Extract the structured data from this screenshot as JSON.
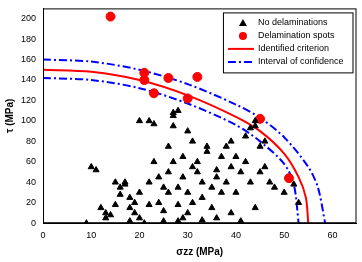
{
  "chart_data": {
    "type": "scatter",
    "x_label": "σzz (MPa)",
    "y_label": "τ (MPa)",
    "xlim": [
      0,
      65
    ],
    "ylim": [
      0,
      210
    ],
    "xticks": [
      0,
      10,
      20,
      30,
      40,
      50,
      60
    ],
    "yticks": [
      0,
      20,
      40,
      60,
      80,
      100,
      120,
      140,
      160,
      180,
      200
    ],
    "grid": false,
    "legend": "upper right",
    "series": [
      {
        "name": "No delaminations",
        "color": "#000000",
        "marker": "triangle",
        "x": [
          9,
          10,
          11,
          12,
          13,
          13,
          14,
          15,
          15,
          16,
          16,
          17,
          17,
          18,
          18,
          19,
          19,
          20,
          20,
          21,
          22,
          22,
          23,
          23,
          24,
          24,
          25,
          25,
          26,
          26,
          27,
          27,
          27,
          27,
          28,
          28,
          28,
          29,
          29,
          30,
          30,
          31,
          31,
          31,
          32,
          32,
          33,
          33,
          34,
          34,
          35,
          35,
          36,
          36,
          37,
          37,
          38,
          38,
          39,
          39,
          40,
          40,
          41,
          42,
          42,
          43,
          43,
          44,
          44,
          45,
          45,
          46,
          46,
          47,
          48,
          50,
          53,
          52,
          20,
          22,
          29,
          30,
          26,
          18,
          25,
          28,
          33,
          41,
          36,
          39,
          44
        ],
        "values": [
          0,
          55,
          52,
          15,
          10,
          5,
          8,
          18,
          40,
          35,
          28,
          40,
          38,
          25,
          15,
          20,
          10,
          5,
          30,
          0,
          18,
          40,
          97,
          60,
          45,
          20,
          12,
          35,
          75,
          50,
          108,
          105,
          95,
          60,
          35,
          18,
          110,
          45,
          65,
          30,
          10,
          55,
          80,
          20,
          60,
          50,
          25,
          40,
          70,
          75,
          15,
          35,
          45,
          52,
          65,
          30,
          40,
          75,
          55,
          80,
          65,
          30,
          50,
          85,
          60,
          93,
          40,
          100,
          95,
          75,
          50,
          55,
          80,
          40,
          35,
          30,
          20,
          38,
          100,
          100,
          5,
          90,
          30,
          2,
          2,
          2,
          3,
          2,
          5,
          10,
          15
        ]
      },
      {
        "name": "Delamination spots",
        "color": "#ff0000",
        "marker": "circle",
        "x": [
          14,
          21,
          21,
          23,
          26,
          30,
          32,
          45,
          51
        ],
        "values": [
          202,
          147,
          140,
          127,
          142,
          122,
          143,
          102,
          44
        ]
      },
      {
        "name": "Identified criterion",
        "color": "#ff0000",
        "type": "line",
        "line_style": "solid",
        "x": [
          0,
          10,
          20,
          30,
          40,
          45,
          50,
          53,
          54.5,
          55
        ],
        "values": [
          150,
          148,
          140,
          125,
          104,
          90,
          68,
          45,
          25,
          0
        ]
      },
      {
        "name": "Interval of confidence",
        "color": "#0000ff",
        "type": "line",
        "line_style": "dashdot",
        "x": [
          0,
          10,
          20,
          30,
          40,
          45,
          50,
          55,
          57,
          58.5
        ],
        "values": [
          160,
          158,
          150,
          136,
          116,
          103,
          84,
          55,
          35,
          0
        ]
      },
      {
        "name": null,
        "color": "#0000ff",
        "type": "line",
        "line_style": "dashdot",
        "x": [
          0,
          10,
          20,
          30,
          40,
          45,
          50,
          52,
          53
        ],
        "values": [
          142,
          140,
          132,
          117,
          96,
          80,
          58,
          38,
          0
        ]
      }
    ]
  }
}
